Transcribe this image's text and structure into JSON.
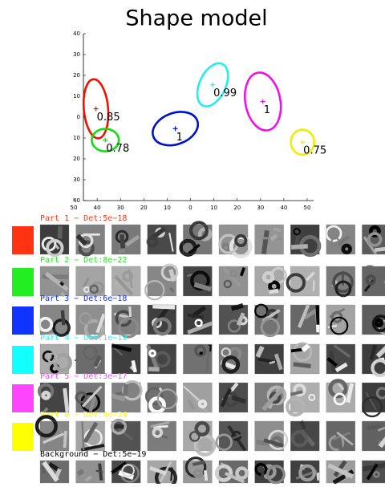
{
  "chart_data": {
    "type": "shape-model",
    "title": "Shape model",
    "xlim": [
      -50,
      50
    ],
    "ylim": [
      -40,
      40
    ],
    "xticks": [
      {
        "value": -50,
        "label": "50"
      },
      {
        "value": -40,
        "label": "40"
      },
      {
        "value": -30,
        "label": "30"
      },
      {
        "value": -20,
        "label": "20"
      },
      {
        "value": -10,
        "label": "10"
      },
      0,
      10,
      20,
      30,
      40,
      50
    ],
    "yticks": [
      40,
      30,
      20,
      10,
      0,
      {
        "value": -10,
        "label": "10"
      },
      {
        "value": -20,
        "label": "20"
      },
      {
        "value": -30,
        "label": "30"
      },
      {
        "value": -40,
        "label": "40"
      }
    ],
    "series": [
      {
        "color": "#ee1100",
        "x": -40.5,
        "y": 4,
        "value": 0.85,
        "rx": 5.2,
        "ry": 14.2,
        "angle": -5
      },
      {
        "color": "#11dd11",
        "x": -36.5,
        "y": -11,
        "value": 0.78,
        "rx": 5.8,
        "ry": 5.4,
        "angle": 0
      },
      {
        "color": "#0011cc",
        "x": -6.5,
        "y": -5.5,
        "value": 1,
        "rx": 10,
        "ry": 7.5,
        "angle": -20
      },
      {
        "color": "#22eeee",
        "x": 9.5,
        "y": 15.5,
        "value": 0.99,
        "rx": 5.6,
        "ry": 11,
        "angle": 25
      },
      {
        "color": "#ee11ee",
        "x": 31,
        "y": 7.5,
        "value": 1,
        "rx": 7.5,
        "ry": 14,
        "angle": -10
      },
      {
        "color": "#eeee00",
        "x": 48,
        "y": -12,
        "value": 0.75,
        "rx": 5,
        "ry": 6,
        "angle": 0
      }
    ]
  },
  "parts": [
    {
      "label": "Part 1 − Det:5e−18",
      "color": "#ff3311"
    },
    {
      "label": "Part 2 − Det:8e−22",
      "color": "#22ee22"
    },
    {
      "label": "Part 3 − Det:6e−18",
      "color": "#1133ff"
    },
    {
      "label": "Part 4 − Det:1e−19",
      "color": "#11ffff"
    },
    {
      "label": "Part 5 − Det:3e−17",
      "color": "#ff44ff"
    },
    {
      "label": "Part 6 − Det:4e−24",
      "color": "#ffff00"
    }
  ],
  "background": {
    "label": "Background − Det:5e−19",
    "color": "#000000"
  }
}
